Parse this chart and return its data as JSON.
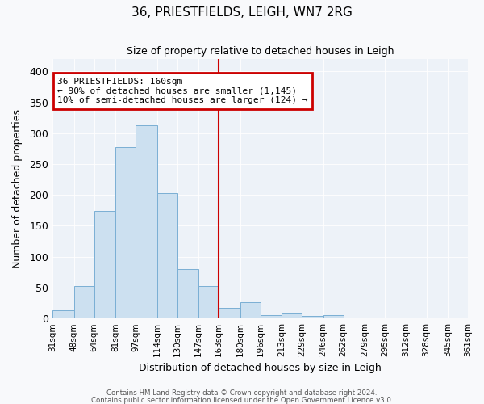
{
  "title": "36, PRIESTFIELDS, LEIGH, WN7 2RG",
  "subtitle": "Size of property relative to detached houses in Leigh",
  "xlabel": "Distribution of detached houses by size in Leigh",
  "ylabel": "Number of detached properties",
  "bar_color": "#cce0f0",
  "bar_edge_color": "#7aafd4",
  "fig_bg_color": "#f8f9fb",
  "ax_bg_color": "#edf2f8",
  "bins": [
    "31sqm",
    "48sqm",
    "64sqm",
    "81sqm",
    "97sqm",
    "114sqm",
    "130sqm",
    "147sqm",
    "163sqm",
    "180sqm",
    "196sqm",
    "213sqm",
    "229sqm",
    "246sqm",
    "262sqm",
    "279sqm",
    "295sqm",
    "312sqm",
    "328sqm",
    "345sqm",
    "361sqm"
  ],
  "bin_edges": [
    31,
    48,
    64,
    81,
    97,
    114,
    130,
    147,
    163,
    180,
    196,
    213,
    229,
    246,
    262,
    279,
    295,
    312,
    328,
    345,
    361
  ],
  "values": [
    13,
    53,
    174,
    277,
    313,
    203,
    80,
    52,
    17,
    26,
    5,
    10,
    4,
    5,
    2,
    2,
    1,
    1,
    1,
    1
  ],
  "vline_x": 163,
  "vline_color": "#cc0000",
  "annotation_title": "36 PRIESTFIELDS: 160sqm",
  "annotation_line1": "← 90% of detached houses are smaller (1,145)",
  "annotation_line2": "10% of semi-detached houses are larger (124) →",
  "annotation_box_color": "#cc0000",
  "ylim": [
    0,
    420
  ],
  "yticks": [
    0,
    50,
    100,
    150,
    200,
    250,
    300,
    350,
    400
  ],
  "footer1": "Contains HM Land Registry data © Crown copyright and database right 2024.",
  "footer2": "Contains public sector information licensed under the Open Government Licence v3.0."
}
